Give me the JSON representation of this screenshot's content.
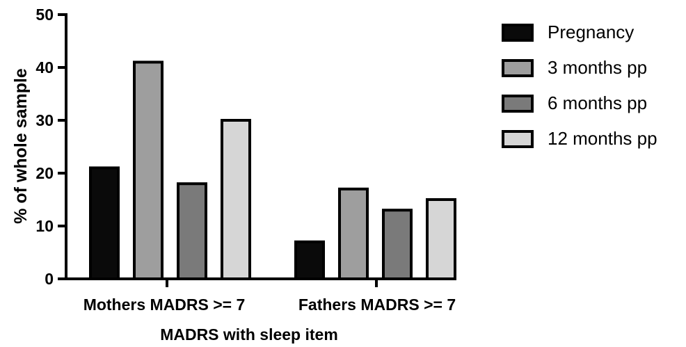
{
  "chart_data": {
    "type": "bar",
    "categories": [
      "Mothers MADRS >= 7",
      "Fathers MADRS >= 7"
    ],
    "series": [
      {
        "name": "Pregnancy",
        "values": [
          21,
          7
        ],
        "color": "#0a0a0a"
      },
      {
        "name": "3 months pp",
        "values": [
          41,
          17
        ],
        "color": "#9e9e9e"
      },
      {
        "name": "6 months pp",
        "values": [
          18,
          13
        ],
        "color": "#7a7a7a"
      },
      {
        "name": "12 months pp",
        "values": [
          30,
          15
        ],
        "color": "#d6d6d6"
      }
    ],
    "xlabel": "MADRS with sleep item",
    "ylabel": "% of whole sample",
    "ylim": [
      0,
      50
    ],
    "yticks": [
      0,
      10,
      20,
      30,
      40,
      50
    ],
    "grid": false,
    "legend_position": "top-right"
  }
}
